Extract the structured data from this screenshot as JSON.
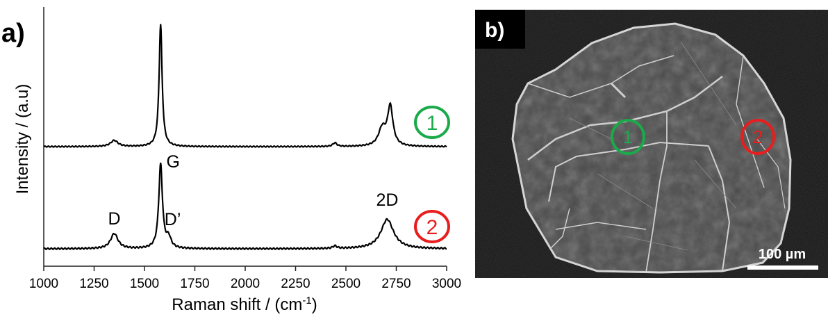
{
  "chart_data": {
    "type": "line",
    "panel_label": "a)",
    "xlabel": "Raman shift / (cm",
    "xlabel_sup": "-1",
    "xlabel_end": ")",
    "ylabel": "Intensity / (a.u)",
    "xlim": [
      1000,
      3000
    ],
    "xticks": [
      "1000",
      "1250",
      "1500",
      "1750",
      "2000",
      "2250",
      "2500",
      "2750",
      "3000"
    ],
    "series": [
      {
        "marker": "1",
        "color": "#1aaa4a",
        "peaks": [
          {
            "center": 1350,
            "height": 0.05,
            "width": 22
          },
          {
            "center": 1580,
            "height": 1.0,
            "width": 9
          },
          {
            "center": 2445,
            "height": 0.03,
            "width": 12
          },
          {
            "center": 2680,
            "height": 0.14,
            "width": 22
          },
          {
            "center": 2720,
            "height": 0.32,
            "width": 16
          }
        ]
      },
      {
        "marker": "2",
        "color": "#e81e1e",
        "peaks": [
          {
            "center": 1350,
            "height": 0.18,
            "width": 22
          },
          {
            "center": 1580,
            "height": 1.0,
            "width": 11
          },
          {
            "center": 1620,
            "height": 0.12,
            "width": 14
          },
          {
            "center": 2445,
            "height": 0.03,
            "width": 12
          },
          {
            "center": 2705,
            "height": 0.35,
            "width": 38
          }
        ]
      }
    ],
    "annotations": [
      {
        "text": "G",
        "x": 1580
      },
      {
        "text": "D",
        "x": 1350
      },
      {
        "text": "D’",
        "x": 1640
      },
      {
        "text": "2D",
        "x": 2705
      }
    ]
  },
  "sem_image": {
    "panel_label": "b)",
    "markers": [
      {
        "text": "1",
        "color": "#1aaa4a"
      },
      {
        "text": "2",
        "color": "#e81e1e"
      }
    ],
    "scale_bar_label": "100 µm"
  }
}
